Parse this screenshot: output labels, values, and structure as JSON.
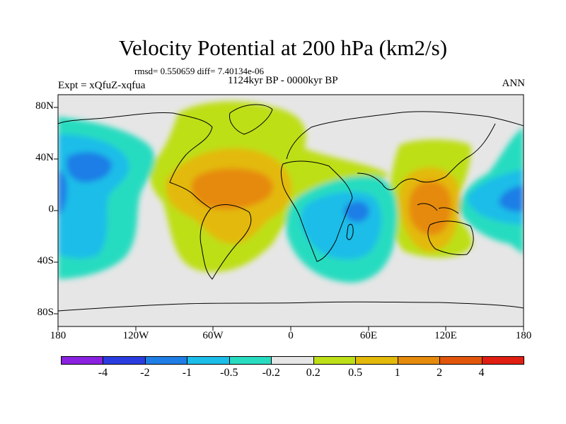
{
  "title": "Velocity Potential at 200 hPa (km2/s)",
  "stats": "rmsd= 0.550659 diff= 7.40134e-06",
  "period": "1124kyr BP - 0000kyr BP",
  "expt": "Expt = xQfuZ-xqfua",
  "season": "ANN",
  "lat_labels": [
    "80N",
    "40N",
    "0",
    "40S",
    "80S"
  ],
  "lon_labels": [
    "180",
    "120W",
    "60W",
    "0",
    "60E",
    "120E",
    "180"
  ],
  "colorbar": {
    "colors": [
      "#8a20e0",
      "#2a3ce0",
      "#1f7ee6",
      "#1cbde8",
      "#28dcc0",
      "#e6e6e6",
      "#bddf18",
      "#e3b90a",
      "#e68a0c",
      "#e2560c",
      "#e01e12"
    ],
    "labels": [
      "-4",
      "-2",
      "-1",
      "-0.5",
      "-0.2",
      "0.2",
      "0.5",
      "1",
      "2",
      "4"
    ]
  }
}
